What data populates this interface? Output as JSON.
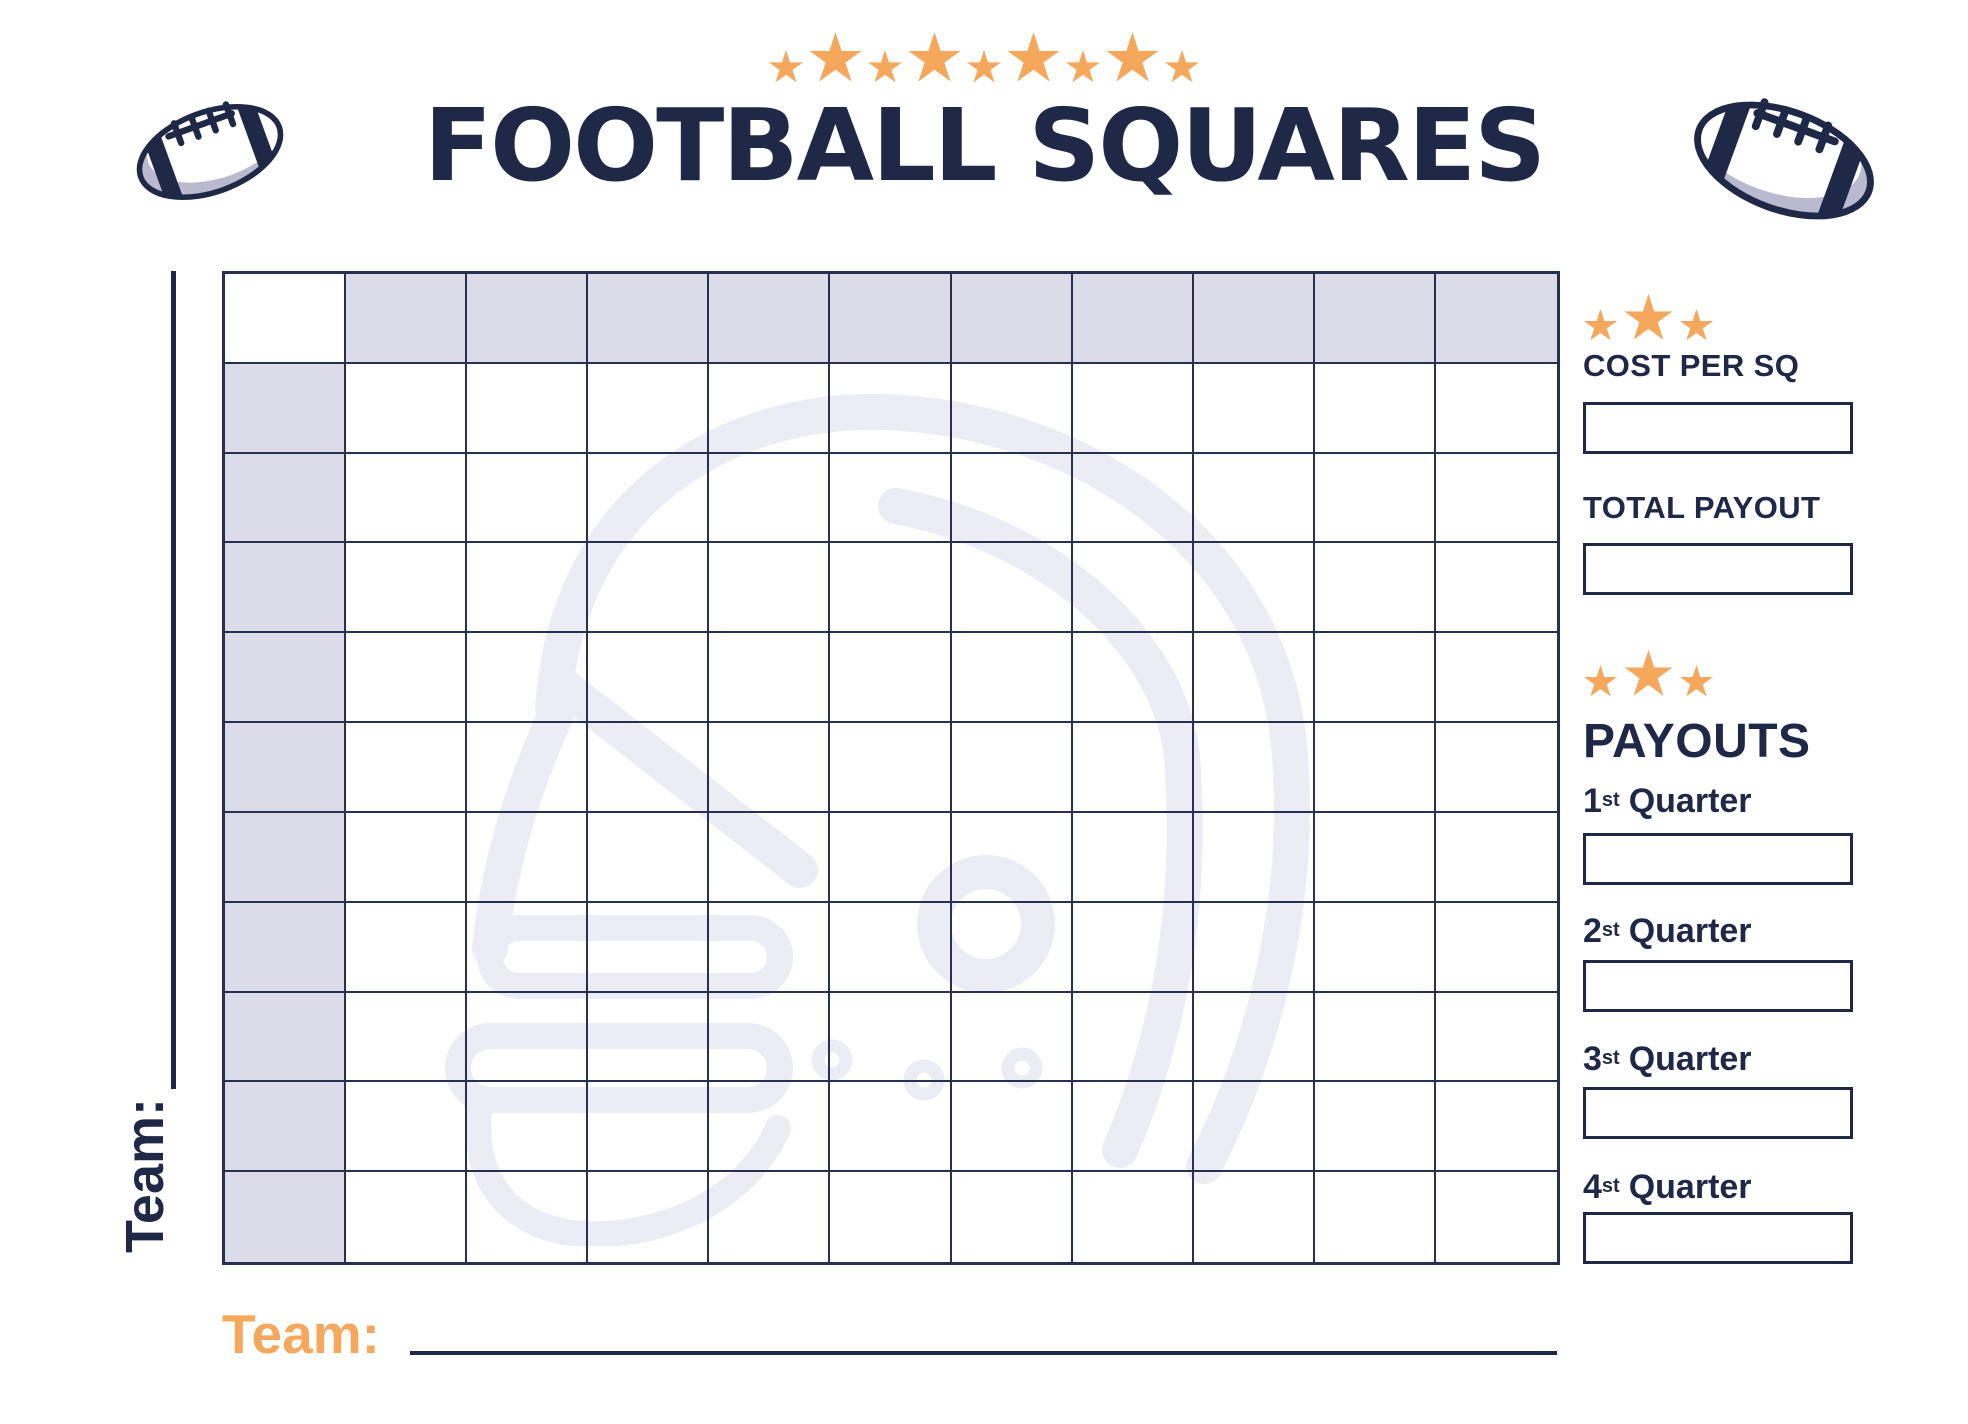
{
  "page": {
    "title": "FOOTBALL SQUARES"
  },
  "decor": {
    "header_stars": [
      34,
      52,
      34,
      52,
      34,
      52,
      34,
      52,
      34
    ],
    "panel_stars": [
      33,
      48,
      33
    ],
    "star_color": "#F5A75C",
    "navy": "#1F2847",
    "grid_line_color": "#263050",
    "header_cell_color": "#DBDCE8",
    "watermark_color": "#ECECF4",
    "orange": "#F5A75C",
    "football_shadow": "#B9BAD0"
  },
  "grid": {
    "rows": 11,
    "cols": 11,
    "squares_rows": 10,
    "squares_cols": 10,
    "top_row_shaded": true,
    "left_col_shaded": true,
    "corner_cell_shaded": false,
    "cells": "empty"
  },
  "side": {
    "team_label": "Team:",
    "team_value": ""
  },
  "bottom": {
    "team_label": "Team:",
    "team_value": ""
  },
  "panel": {
    "cost": {
      "label": "COST PER SQ",
      "value": ""
    },
    "total": {
      "label": "TOTAL PAYOUT",
      "value": ""
    },
    "payouts_title": "PAYOUTS",
    "quarters": [
      {
        "num": "1",
        "suffix": "st",
        "word": "Quarter",
        "value": ""
      },
      {
        "num": "2",
        "suffix": "st",
        "word": "Quarter",
        "value": ""
      },
      {
        "num": "3",
        "suffix": "st",
        "word": "Quarter",
        "value": ""
      },
      {
        "num": "4",
        "suffix": "st",
        "word": "Quarter",
        "value": ""
      }
    ]
  }
}
